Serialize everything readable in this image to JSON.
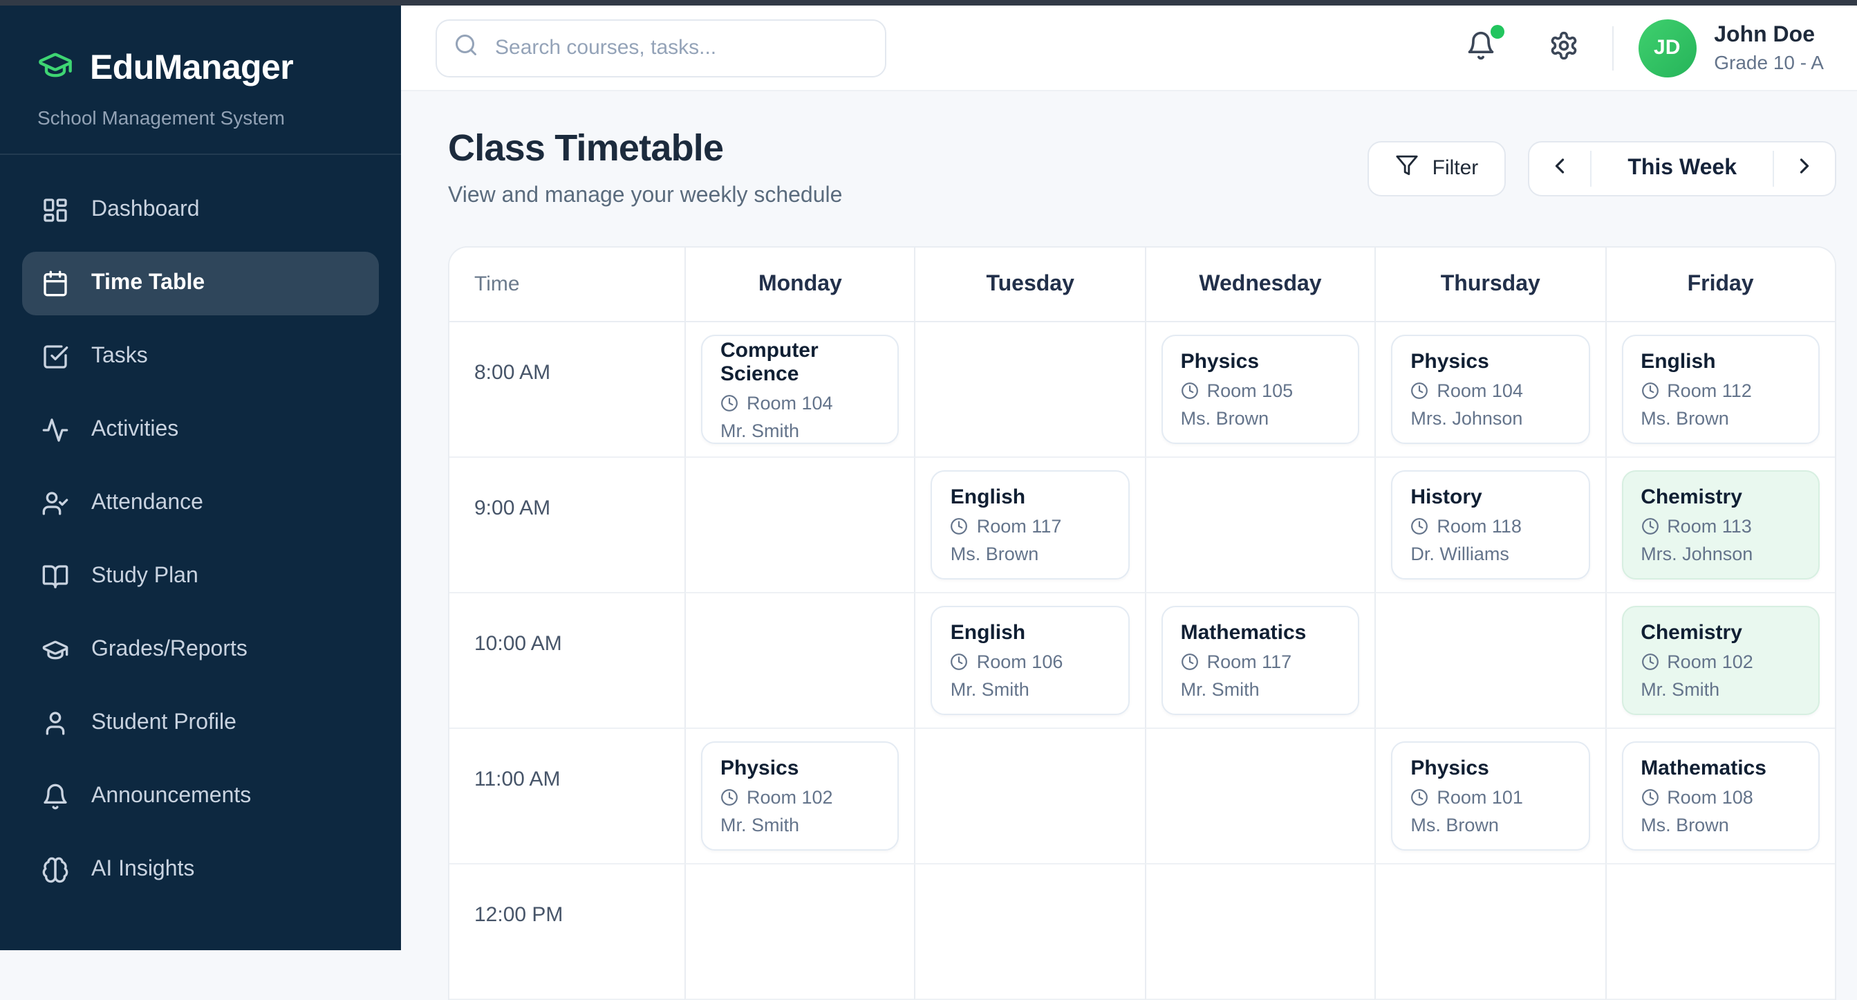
{
  "app": {
    "name": "EduManager",
    "tagline": "School Management System"
  },
  "sidebar": {
    "items": [
      {
        "id": "dashboard",
        "label": "Dashboard",
        "icon": "layout-dashboard",
        "active": false
      },
      {
        "id": "time-table",
        "label": "Time Table",
        "icon": "calendar",
        "active": true
      },
      {
        "id": "tasks",
        "label": "Tasks",
        "icon": "check-square",
        "active": false
      },
      {
        "id": "activities",
        "label": "Activities",
        "icon": "activity",
        "active": false
      },
      {
        "id": "attendance",
        "label": "Attendance",
        "icon": "user-check",
        "active": false
      },
      {
        "id": "study-plan",
        "label": "Study Plan",
        "icon": "book-open",
        "active": false
      },
      {
        "id": "grades-reports",
        "label": "Grades/Reports",
        "icon": "graduation-cap",
        "active": false
      },
      {
        "id": "student-profile",
        "label": "Student Profile",
        "icon": "user",
        "active": false
      },
      {
        "id": "announcements",
        "label": "Announcements",
        "icon": "bell",
        "active": false
      },
      {
        "id": "ai-insights",
        "label": "AI Insights",
        "icon": "brain",
        "active": false
      }
    ]
  },
  "topbar": {
    "search_placeholder": "Search courses, tasks...",
    "user": {
      "initials": "JD",
      "name": "John Doe",
      "grade": "Grade 10 - A"
    }
  },
  "page": {
    "title": "Class Timetable",
    "subtitle": "View and manage your weekly schedule",
    "filter_label": "Filter",
    "week_label": "This Week"
  },
  "timetable": {
    "columns": [
      "Time",
      "Monday",
      "Tuesday",
      "Wednesday",
      "Thursday",
      "Friday"
    ],
    "rows": [
      {
        "time": "8:00 AM",
        "cells": [
          {
            "subject": "Computer Science",
            "room": "Room 104",
            "teacher": "Mr. Smith",
            "variant": "white"
          },
          null,
          {
            "subject": "Physics",
            "room": "Room 105",
            "teacher": "Ms. Brown",
            "variant": "white"
          },
          {
            "subject": "Physics",
            "room": "Room 104",
            "teacher": "Mrs. Johnson",
            "variant": "white"
          },
          {
            "subject": "English",
            "room": "Room 112",
            "teacher": "Ms. Brown",
            "variant": "white"
          }
        ]
      },
      {
        "time": "9:00 AM",
        "cells": [
          null,
          {
            "subject": "English",
            "room": "Room 117",
            "teacher": "Ms. Brown",
            "variant": "white"
          },
          null,
          {
            "subject": "History",
            "room": "Room 118",
            "teacher": "Dr. Williams",
            "variant": "white"
          },
          {
            "subject": "Chemistry",
            "room": "Room 113",
            "teacher": "Mrs. Johnson",
            "variant": "green"
          }
        ]
      },
      {
        "time": "10:00 AM",
        "cells": [
          null,
          {
            "subject": "English",
            "room": "Room 106",
            "teacher": "Mr. Smith",
            "variant": "white"
          },
          {
            "subject": "Mathematics",
            "room": "Room 117",
            "teacher": "Mr. Smith",
            "variant": "white"
          },
          null,
          {
            "subject": "Chemistry",
            "room": "Room 102",
            "teacher": "Mr. Smith",
            "variant": "green"
          }
        ]
      },
      {
        "time": "11:00 AM",
        "cells": [
          {
            "subject": "Physics",
            "room": "Room 102",
            "teacher": "Mr. Smith",
            "variant": "white"
          },
          null,
          null,
          {
            "subject": "Physics",
            "room": "Room 101",
            "teacher": "Ms. Brown",
            "variant": "white"
          },
          {
            "subject": "Mathematics",
            "room": "Room 108",
            "teacher": "Ms. Brown",
            "variant": "white"
          }
        ]
      },
      {
        "time": "12:00 PM",
        "cells": [
          null,
          null,
          null,
          null,
          null
        ]
      }
    ]
  },
  "colors": {
    "accent_green": "#3ed573",
    "avatar_green": "#2fbf63",
    "notification_dot": "#22c55e",
    "sidebar_bg": "#0d2840",
    "page_bg": "#f6f8fb",
    "card_green_bg": "#e9f8ef"
  }
}
